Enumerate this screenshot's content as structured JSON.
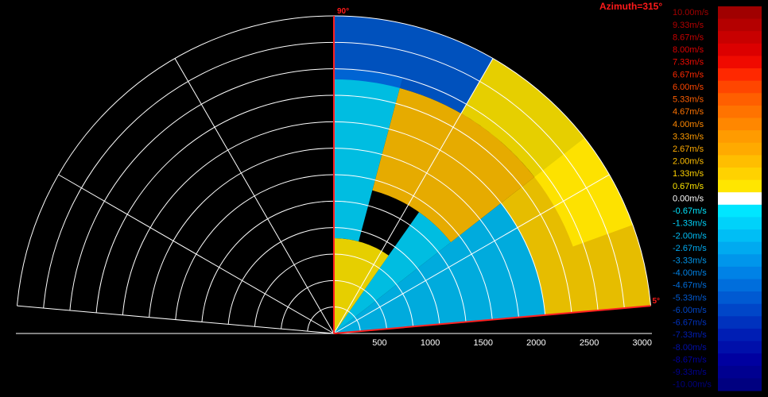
{
  "chart_data": {
    "type": "heatmap",
    "subtype": "radar-velocity-sector",
    "title": "Azimuth=315°",
    "angle_range_deg": [
      5,
      90
    ],
    "angle_labels": [
      "90°",
      "5°"
    ],
    "range_max": 3000,
    "range_ticks": [
      500,
      1000,
      1500,
      2000,
      2500,
      3000
    ],
    "range_ring_step": 250,
    "radial_spoke_angles_deg": [
      5,
      30,
      60,
      90,
      120,
      150,
      175
    ],
    "grid": true,
    "units": "m/s",
    "colorbar": {
      "placement": "right",
      "levels": [
        {
          "label": "10.00m/s",
          "color": "#a00000"
        },
        {
          "label": "9.33m/s",
          "color": "#b40000"
        },
        {
          "label": "8.67m/s",
          "color": "#c80000"
        },
        {
          "label": "8.00m/s",
          "color": "#dc0000"
        },
        {
          "label": "7.33m/s",
          "color": "#f00a00"
        },
        {
          "label": "6.67m/s",
          "color": "#ff2800"
        },
        {
          "label": "6.00m/s",
          "color": "#ff4600"
        },
        {
          "label": "5.33m/s",
          "color": "#ff5f00"
        },
        {
          "label": "4.67m/s",
          "color": "#ff7300"
        },
        {
          "label": "4.00m/s",
          "color": "#ff8700"
        },
        {
          "label": "3.33m/s",
          "color": "#ff9b00"
        },
        {
          "label": "2.67m/s",
          "color": "#ffaa00"
        },
        {
          "label": "2.00m/s",
          "color": "#ffbe00"
        },
        {
          "label": "1.33m/s",
          "color": "#ffd200"
        },
        {
          "label": "0.67m/s",
          "color": "#ffe600"
        },
        {
          "label": "0.00m/s",
          "color": "#ffffff"
        },
        {
          "label": "-0.67m/s",
          "color": "#00e6ff"
        },
        {
          "label": "-1.33m/s",
          "color": "#00d2fa"
        },
        {
          "label": "-2.00m/s",
          "color": "#00bef5"
        },
        {
          "label": "-2.67m/s",
          "color": "#00aaf0"
        },
        {
          "label": "-3.33m/s",
          "color": "#0096eb"
        },
        {
          "label": "-4.00m/s",
          "color": "#0082e6"
        },
        {
          "label": "-4.67m/s",
          "color": "#006edc"
        },
        {
          "label": "-5.33m/s",
          "color": "#005ad2"
        },
        {
          "label": "-6.00m/s",
          "color": "#0046c8"
        },
        {
          "label": "-6.67m/s",
          "color": "#0032be"
        },
        {
          "label": "-7.33m/s",
          "color": "#001eb4"
        },
        {
          "label": "-8.00m/s",
          "color": "#000faa"
        },
        {
          "label": "-8.67m/s",
          "color": "#0000a0"
        },
        {
          "label": "-9.33m/s",
          "color": "#000090"
        },
        {
          "label": "-10.00m/s",
          "color": "#000080"
        }
      ]
    },
    "regions": [
      {
        "angle_deg": [
          5,
          38
        ],
        "range": [
          0,
          2000
        ],
        "velocity": -2.0
      },
      {
        "angle_deg": [
          5,
          38
        ],
        "range": [
          2000,
          3000
        ],
        "velocity": 1.33
      },
      {
        "angle_deg": [
          38,
          55
        ],
        "range": [
          0,
          1400
        ],
        "velocity": -1.33
      },
      {
        "angle_deg": [
          38,
          75
        ],
        "range": [
          1400,
          2400
        ],
        "velocity": 2.0
      },
      {
        "angle_deg": [
          55,
          90
        ],
        "range": [
          0,
          900
        ],
        "velocity": 0.67
      },
      {
        "angle_deg": [
          75,
          90
        ],
        "range": [
          900,
          2500
        ],
        "velocity": -1.33
      },
      {
        "angle_deg": [
          60,
          90
        ],
        "range": [
          2400,
          3000
        ],
        "velocity": -5.33
      },
      {
        "angle_deg": [
          20,
          60
        ],
        "range": [
          2400,
          3000
        ],
        "velocity": 0.67
      }
    ]
  }
}
